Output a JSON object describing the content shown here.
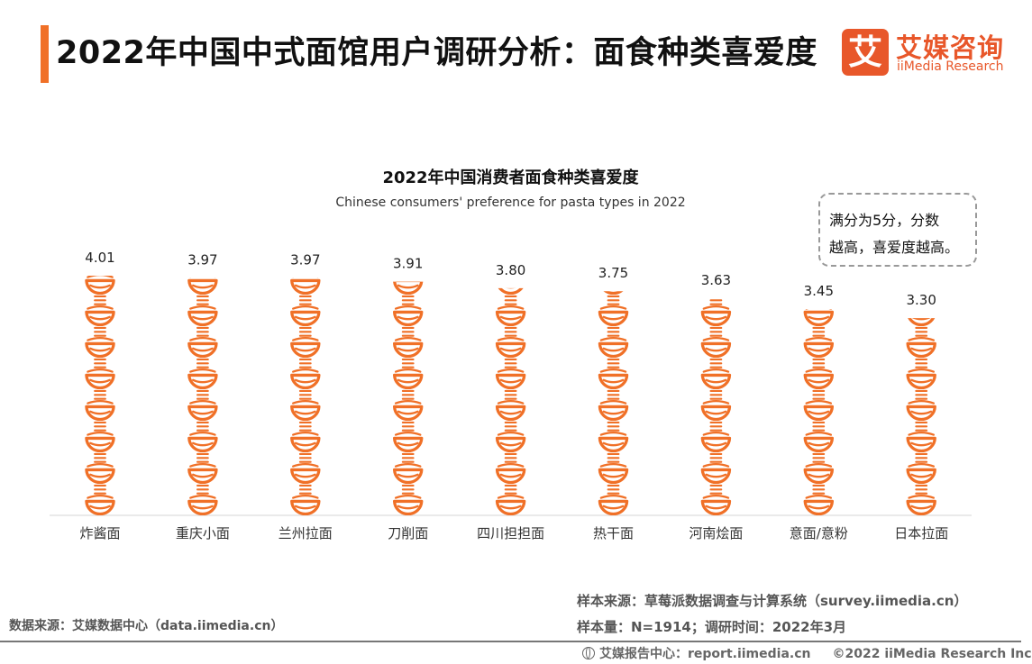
{
  "header": {
    "title": "2022年中国中式面馆用户调研分析：面食种类喜爱度",
    "accent_color": "#f07027"
  },
  "logo": {
    "mark": "艾",
    "name_cn": "艾媒咨询",
    "name_en": "iiMedia Research",
    "color": "#e8572a"
  },
  "note": {
    "line1": "满分为5分，分数",
    "line2": "越高，喜爱度越高。"
  },
  "chart_data": {
    "type": "bar",
    "title": "2022年中国消费者面食种类喜爱度",
    "subtitle": "Chinese consumers' preference for pasta types in 2022",
    "categories": [
      "炸酱面",
      "重庆小面",
      "兰州拉面",
      "刀削面",
      "四川担担面",
      "热干面",
      "河南烩面",
      "意面/意粉",
      "日本拉面"
    ],
    "values": [
      4.01,
      3.97,
      3.97,
      3.91,
      3.8,
      3.75,
      3.63,
      3.45,
      3.3
    ],
    "value_labels": [
      "4.01",
      "3.97",
      "3.97",
      "3.91",
      "3.80",
      "3.75",
      "3.63",
      "3.45",
      "3.30"
    ],
    "ylim": [
      0,
      4.2
    ],
    "marker": "noodle-bowl-icon",
    "color": "#f07027",
    "grid": false,
    "legend": "none"
  },
  "footer": {
    "data_source": "数据来源：艾媒数据中心（data.iimedia.cn）",
    "sample_source": "样本来源：草莓派数据调查与计算系统（survey.iimedia.cn）",
    "sample_size": "样本量：N=1914；调研时间：2022年3月",
    "report_center": "艾媒报告中心：report.iimedia.cn",
    "copyright": "©2022  iiMedia Research Inc"
  }
}
